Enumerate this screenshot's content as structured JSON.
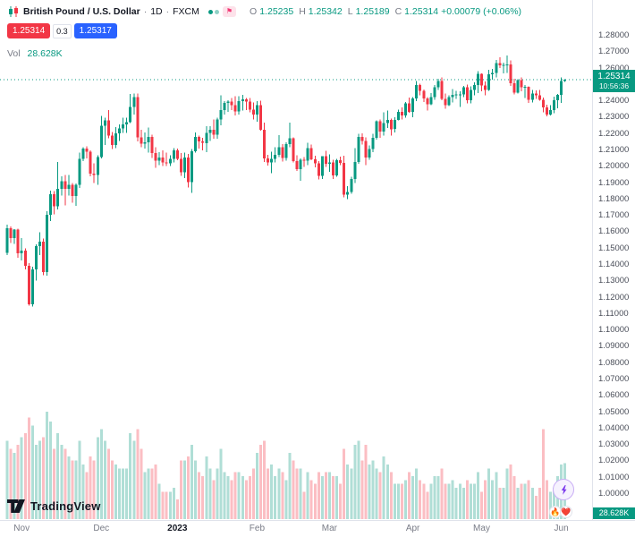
{
  "legend": {
    "symbol_name": "British Pound / U.S. Dollar",
    "separator": "·",
    "interval": "1D",
    "exchange": "FXCM",
    "ohlc": {
      "o_label": "O",
      "o_value": "1.25235",
      "h_label": "H",
      "h_value": "1.25342",
      "l_label": "L",
      "l_value": "1.25189",
      "c_label": "C",
      "c_value": "1.25314",
      "change": "+0.00079 (+0.06%)"
    },
    "sell_price": "1.25314",
    "spread": "0.3",
    "buy_price": "1.25317",
    "volume_label": "Vol",
    "volume_value": "28.628K"
  },
  "price_scale": {
    "ticks": [
      "1.28000",
      "1.27000",
      "1.26000",
      "1.25000",
      "1.24000",
      "1.23000",
      "1.22000",
      "1.21000",
      "1.20000",
      "1.19000",
      "1.18000",
      "1.17000",
      "1.16000",
      "1.15000",
      "1.14000",
      "1.13000",
      "1.12000",
      "1.11000",
      "1.10000",
      "1.09000",
      "1.08000",
      "1.07000",
      "1.06000",
      "1.05000",
      "1.04000",
      "1.03000",
      "1.02000",
      "1.01000",
      "1.00000"
    ],
    "current_price_label": "1.25314",
    "countdown": "10:56:36",
    "volume_value_label": "28.628K"
  },
  "time_axis": {
    "labels": [
      {
        "text": "Nov",
        "index": 4
      },
      {
        "text": "Dec",
        "index": 26
      },
      {
        "text": "2023",
        "index": 47,
        "bold": true
      },
      {
        "text": "Feb",
        "index": 69
      },
      {
        "text": "Mar",
        "index": 89
      },
      {
        "text": "Apr",
        "index": 112
      },
      {
        "text": "May",
        "index": 131
      },
      {
        "text": "Jun",
        "index": 153
      }
    ]
  },
  "footer": {
    "logo_text": "TradingView"
  },
  "floating": {
    "reactions": [
      "🔥",
      "❤️"
    ]
  },
  "colors": {
    "up": "#089981",
    "down": "#f23645",
    "vol_up": "rgba(8,153,129,0.32)",
    "vol_down": "rgba(242,54,69,0.32)",
    "buy_button": "#2962ff",
    "sell_button": "#f23645",
    "accent_teal": "#089981"
  },
  "chart_data": {
    "type": "candlestick",
    "title": "British Pound / U.S. Dollar · 1D · FXCM",
    "symbol": "GBP/USD",
    "interval": "1D",
    "current_price": 1.25314,
    "price_axis": {
      "min": 1.0,
      "max": 1.28,
      "tick_step": 0.01
    },
    "x_axis": {
      "labels": [
        "Nov",
        "Dec",
        "2023",
        "Feb",
        "Mar",
        "Apr",
        "May",
        "Jun"
      ]
    },
    "volume_last": 28.628,
    "candles": [
      [
        1.1473,
        1.1645,
        1.146,
        1.1625,
        40
      ],
      [
        1.1625,
        1.1636,
        1.1533,
        1.1565,
        36
      ],
      [
        1.1565,
        1.162,
        1.1528,
        1.1615,
        34
      ],
      [
        1.1615,
        1.1622,
        1.1445,
        1.147,
        38
      ],
      [
        1.147,
        1.1565,
        1.1428,
        1.1487,
        42
      ],
      [
        1.1487,
        1.15,
        1.1374,
        1.1395,
        44
      ],
      [
        1.1395,
        1.141,
        1.115,
        1.116,
        52
      ],
      [
        1.116,
        1.139,
        1.1146,
        1.1373,
        48
      ],
      [
        1.1373,
        1.1525,
        1.1303,
        1.1514,
        38
      ],
      [
        1.1514,
        1.1599,
        1.146,
        1.1543,
        40
      ],
      [
        1.1543,
        1.156,
        1.1336,
        1.1356,
        42
      ],
      [
        1.1356,
        1.1727,
        1.1334,
        1.1705,
        55
      ],
      [
        1.1705,
        1.1855,
        1.1667,
        1.1833,
        50
      ],
      [
        1.1833,
        1.185,
        1.171,
        1.1759,
        36
      ],
      [
        1.1759,
        1.2028,
        1.174,
        1.1866,
        44
      ],
      [
        1.1866,
        1.1942,
        1.1825,
        1.1911,
        38
      ],
      [
        1.1911,
        1.195,
        1.1765,
        1.1866,
        36
      ],
      [
        1.1866,
        1.195,
        1.1824,
        1.1889,
        32
      ],
      [
        1.1889,
        1.19,
        1.1779,
        1.182,
        30
      ],
      [
        1.182,
        1.1899,
        1.176,
        1.1889,
        30
      ],
      [
        1.1889,
        1.2085,
        1.187,
        1.2048,
        40
      ],
      [
        1.2048,
        1.212,
        1.2035,
        1.2112,
        28
      ],
      [
        1.2112,
        1.2125,
        1.205,
        1.2093,
        24
      ],
      [
        1.2093,
        1.21,
        1.1942,
        1.1958,
        32
      ],
      [
        1.1958,
        1.2022,
        1.19,
        1.1951,
        30
      ],
      [
        1.1951,
        1.207,
        1.189,
        1.2058,
        42
      ],
      [
        1.2058,
        1.2311,
        1.205,
        1.2251,
        46
      ],
      [
        1.2251,
        1.23,
        1.2134,
        1.2284,
        40
      ],
      [
        1.2284,
        1.2345,
        1.2175,
        1.219,
        36
      ],
      [
        1.219,
        1.2211,
        1.2107,
        1.2133,
        30
      ],
      [
        1.2133,
        1.2243,
        1.2115,
        1.2205,
        28
      ],
      [
        1.2205,
        1.2259,
        1.2157,
        1.2234,
        26
      ],
      [
        1.2234,
        1.2299,
        1.2207,
        1.2259,
        26
      ],
      [
        1.2259,
        1.23,
        1.2206,
        1.2272,
        26
      ],
      [
        1.2272,
        1.2444,
        1.2267,
        1.2365,
        44
      ],
      [
        1.2365,
        1.2446,
        1.232,
        1.2426,
        40
      ],
      [
        1.2426,
        1.2447,
        1.2154,
        1.218,
        46
      ],
      [
        1.218,
        1.2226,
        1.212,
        1.214,
        36
      ],
      [
        1.214,
        1.221,
        1.211,
        1.2148,
        24
      ],
      [
        1.2148,
        1.224,
        1.2085,
        1.2182,
        26
      ],
      [
        1.2182,
        1.2196,
        1.2053,
        1.2084,
        26
      ],
      [
        1.2084,
        1.2118,
        1.1992,
        1.2037,
        28
      ],
      [
        1.2037,
        1.209,
        1.201,
        1.2055,
        18
      ],
      [
        1.2055,
        1.21,
        1.2005,
        1.2025,
        14
      ],
      [
        1.2025,
        1.2087,
        1.2003,
        1.2021,
        14
      ],
      [
        1.2021,
        1.2071,
        1.2005,
        1.2048,
        14
      ],
      [
        1.2048,
        1.2114,
        1.2027,
        1.2099,
        16
      ],
      [
        1.2099,
        1.211,
        1.204,
        1.2048,
        10
      ],
      [
        1.2048,
        1.2084,
        1.1945,
        1.1966,
        30
      ],
      [
        1.1966,
        1.2087,
        1.193,
        1.2057,
        30
      ],
      [
        1.2057,
        1.2077,
        1.1873,
        1.1907,
        32
      ],
      [
        1.1907,
        1.2107,
        1.1841,
        1.2094,
        38
      ],
      [
        1.2094,
        1.2209,
        1.2086,
        1.2182,
        30
      ],
      [
        1.2182,
        1.2191,
        1.211,
        1.2154,
        24
      ],
      [
        1.2154,
        1.2177,
        1.21,
        1.2145,
        22
      ],
      [
        1.2145,
        1.2248,
        1.2088,
        1.2206,
        32
      ],
      [
        1.2206,
        1.2248,
        1.2157,
        1.2227,
        26
      ],
      [
        1.2227,
        1.229,
        1.2172,
        1.2196,
        20
      ],
      [
        1.2196,
        1.2299,
        1.2172,
        1.2288,
        26
      ],
      [
        1.2288,
        1.2435,
        1.2254,
        1.2346,
        36
      ],
      [
        1.2346,
        1.24,
        1.232,
        1.239,
        24
      ],
      [
        1.239,
        1.2405,
        1.2336,
        1.2397,
        22
      ],
      [
        1.2397,
        1.242,
        1.2345,
        1.2375,
        20
      ],
      [
        1.2375,
        1.243,
        1.2314,
        1.2339,
        24
      ],
      [
        1.2339,
        1.2432,
        1.232,
        1.24,
        24
      ],
      [
        1.24,
        1.244,
        1.2344,
        1.2411,
        22
      ],
      [
        1.2411,
        1.2419,
        1.2345,
        1.2398,
        20
      ],
      [
        1.2398,
        1.242,
        1.2333,
        1.2348,
        22
      ],
      [
        1.2348,
        1.2392,
        1.229,
        1.2319,
        26
      ],
      [
        1.2319,
        1.24,
        1.2275,
        1.2377,
        34
      ],
      [
        1.2377,
        1.2403,
        1.2219,
        1.2225,
        38
      ],
      [
        1.2225,
        1.227,
        1.203,
        1.205,
        40
      ],
      [
        1.205,
        1.2074,
        1.2006,
        1.2025,
        26
      ],
      [
        1.2025,
        1.2092,
        1.1961,
        1.2049,
        28
      ],
      [
        1.2049,
        1.212,
        1.2026,
        1.2073,
        22
      ],
      [
        1.2073,
        1.2194,
        1.2059,
        1.212,
        26
      ],
      [
        1.212,
        1.2138,
        1.2031,
        1.2053,
        24
      ],
      [
        1.2053,
        1.2148,
        1.2038,
        1.2137,
        20
      ],
      [
        1.2137,
        1.227,
        1.2119,
        1.2175,
        34
      ],
      [
        1.2175,
        1.218,
        1.2025,
        1.2035,
        30
      ],
      [
        1.2035,
        1.207,
        1.1973,
        1.1986,
        26
      ],
      [
        1.1986,
        1.205,
        1.1915,
        1.2043,
        26
      ],
      [
        1.2043,
        1.2058,
        1.2,
        1.2038,
        14
      ],
      [
        1.2038,
        1.2147,
        1.201,
        1.2113,
        24
      ],
      [
        1.2113,
        1.2135,
        1.204,
        1.2045,
        20
      ],
      [
        1.2045,
        1.2066,
        1.1996,
        1.2022,
        18
      ],
      [
        1.2022,
        1.2035,
        1.1923,
        1.1943,
        24
      ],
      [
        1.1943,
        1.2065,
        1.1924,
        1.2064,
        22
      ],
      [
        1.2064,
        1.2098,
        1.1999,
        1.2019,
        24
      ],
      [
        1.2019,
        1.2075,
        1.1968,
        1.2025,
        24
      ],
      [
        1.2025,
        1.2042,
        1.1924,
        1.1948,
        22
      ],
      [
        1.1948,
        1.2048,
        1.194,
        1.204,
        22
      ],
      [
        1.204,
        1.2063,
        1.2011,
        1.2024,
        18
      ],
      [
        1.2024,
        1.2066,
        1.1813,
        1.183,
        36
      ],
      [
        1.183,
        1.188,
        1.1802,
        1.1845,
        28
      ],
      [
        1.1845,
        1.1938,
        1.1834,
        1.1924,
        26
      ],
      [
        1.1924,
        1.2113,
        1.19,
        1.203,
        38
      ],
      [
        1.203,
        1.22,
        1.2017,
        1.2183,
        40
      ],
      [
        1.2183,
        1.2203,
        1.2136,
        1.2158,
        30
      ],
      [
        1.2158,
        1.218,
        1.201,
        1.2057,
        38
      ],
      [
        1.2057,
        1.2131,
        1.2043,
        1.2109,
        28
      ],
      [
        1.2109,
        1.2201,
        1.2088,
        1.2176,
        30
      ],
      [
        1.2176,
        1.2284,
        1.2166,
        1.2277,
        26
      ],
      [
        1.2277,
        1.2288,
        1.2176,
        1.2215,
        24
      ],
      [
        1.2215,
        1.2333,
        1.219,
        1.2268,
        32
      ],
      [
        1.2268,
        1.2344,
        1.2238,
        1.2285,
        28
      ],
      [
        1.2285,
        1.2293,
        1.2191,
        1.223,
        24
      ],
      [
        1.223,
        1.2301,
        1.221,
        1.2287,
        18
      ],
      [
        1.2287,
        1.235,
        1.2283,
        1.2336,
        18
      ],
      [
        1.2336,
        1.2363,
        1.229,
        1.2313,
        18
      ],
      [
        1.2313,
        1.2395,
        1.23,
        1.2386,
        20
      ],
      [
        1.2386,
        1.2423,
        1.233,
        1.2336,
        24
      ],
      [
        1.2336,
        1.2425,
        1.2302,
        1.2418,
        22
      ],
      [
        1.2418,
        1.2525,
        1.24,
        1.25,
        26
      ],
      [
        1.25,
        1.2507,
        1.2436,
        1.2463,
        20
      ],
      [
        1.2463,
        1.2472,
        1.2395,
        1.2416,
        18
      ],
      [
        1.2416,
        1.2425,
        1.2344,
        1.2381,
        14
      ],
      [
        1.2381,
        1.245,
        1.2375,
        1.2426,
        18
      ],
      [
        1.2426,
        1.25,
        1.2408,
        1.2485,
        22
      ],
      [
        1.2485,
        1.2538,
        1.247,
        1.2524,
        22
      ],
      [
        1.2524,
        1.2546,
        1.2406,
        1.2414,
        26
      ],
      [
        1.2414,
        1.2448,
        1.2355,
        1.2375,
        18
      ],
      [
        1.2375,
        1.2437,
        1.237,
        1.2425,
        18
      ],
      [
        1.2425,
        1.2475,
        1.2392,
        1.2439,
        20
      ],
      [
        1.2439,
        1.2465,
        1.2414,
        1.2442,
        16
      ],
      [
        1.2442,
        1.246,
        1.2366,
        1.2443,
        18
      ],
      [
        1.2443,
        1.2494,
        1.2426,
        1.2486,
        16
      ],
      [
        1.2486,
        1.2502,
        1.2386,
        1.2406,
        20
      ],
      [
        1.2406,
        1.249,
        1.2387,
        1.247,
        18
      ],
      [
        1.247,
        1.2516,
        1.2436,
        1.2498,
        18
      ],
      [
        1.2498,
        1.2583,
        1.2449,
        1.2567,
        24
      ],
      [
        1.2567,
        1.257,
        1.2462,
        1.2497,
        14
      ],
      [
        1.2497,
        1.2522,
        1.2435,
        1.247,
        20
      ],
      [
        1.247,
        1.2593,
        1.2464,
        1.2566,
        26
      ],
      [
        1.2566,
        1.2598,
        1.2532,
        1.2574,
        20
      ],
      [
        1.2574,
        1.2652,
        1.2545,
        1.2633,
        24
      ],
      [
        1.2633,
        1.2668,
        1.2603,
        1.262,
        16
      ],
      [
        1.262,
        1.2637,
        1.257,
        1.2622,
        16
      ],
      [
        1.2622,
        1.268,
        1.2573,
        1.2624,
        26
      ],
      [
        1.2624,
        1.2649,
        1.2495,
        1.251,
        28
      ],
      [
        1.251,
        1.2538,
        1.2442,
        1.2452,
        22
      ],
      [
        1.2452,
        1.2535,
        1.2448,
        1.2528,
        16
      ],
      [
        1.2528,
        1.2546,
        1.246,
        1.2486,
        18
      ],
      [
        1.2486,
        1.2498,
        1.2421,
        1.2487,
        18
      ],
      [
        1.2487,
        1.249,
        1.2391,
        1.241,
        20
      ],
      [
        1.241,
        1.247,
        1.2392,
        1.2446,
        16
      ],
      [
        1.2446,
        1.2466,
        1.2415,
        1.2436,
        12
      ],
      [
        1.2436,
        1.247,
        1.2404,
        1.241,
        16
      ],
      [
        1.241,
        1.2422,
        1.2332,
        1.2363,
        46
      ],
      [
        1.2363,
        1.2378,
        1.2308,
        1.232,
        20
      ],
      [
        1.232,
        1.2375,
        1.2313,
        1.2346,
        14
      ],
      [
        1.2346,
        1.2427,
        1.2327,
        1.2407,
        16
      ],
      [
        1.2407,
        1.2445,
        1.2358,
        1.244,
        22
      ],
      [
        1.244,
        1.2545,
        1.239,
        1.2524,
        28
      ],
      [
        1.25235,
        1.25342,
        1.25189,
        1.25314,
        28.628
      ]
    ]
  }
}
